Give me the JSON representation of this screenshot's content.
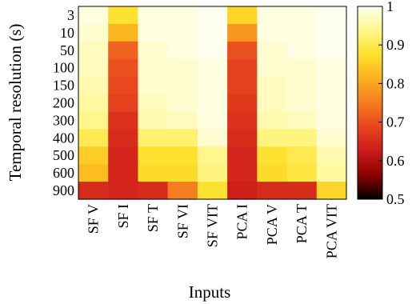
{
  "chart_data": {
    "type": "heatmap",
    "xlabel": "Inputs",
    "ylabel": "Temporal resolution (s)",
    "x_categories": [
      "SF V",
      "SF I",
      "SF T",
      "SF VI",
      "SF VIT",
      "PCA I",
      "PCA V",
      "PCA T",
      "PCA VIT"
    ],
    "y_categories": [
      "3",
      "10",
      "50",
      "100",
      "150",
      "200",
      "300",
      "400",
      "500",
      "600",
      "900"
    ],
    "values": [
      [
        0.99,
        0.88,
        0.99,
        0.99,
        1.0,
        0.86,
        0.99,
        0.99,
        1.0
      ],
      [
        0.98,
        0.82,
        0.99,
        0.99,
        1.0,
        0.78,
        0.99,
        0.99,
        1.0
      ],
      [
        0.97,
        0.72,
        0.98,
        0.99,
        1.0,
        0.7,
        0.98,
        0.99,
        1.0
      ],
      [
        0.97,
        0.7,
        0.98,
        0.98,
        0.99,
        0.68,
        0.98,
        0.98,
        0.99
      ],
      [
        0.96,
        0.69,
        0.98,
        0.98,
        0.99,
        0.68,
        0.97,
        0.98,
        0.99
      ],
      [
        0.95,
        0.68,
        0.97,
        0.98,
        0.99,
        0.67,
        0.97,
        0.98,
        0.99
      ],
      [
        0.94,
        0.66,
        0.96,
        0.97,
        0.99,
        0.66,
        0.96,
        0.97,
        0.99
      ],
      [
        0.9,
        0.65,
        0.92,
        0.92,
        0.98,
        0.65,
        0.93,
        0.93,
        0.98
      ],
      [
        0.85,
        0.64,
        0.88,
        0.88,
        0.94,
        0.64,
        0.88,
        0.9,
        0.96
      ],
      [
        0.83,
        0.64,
        0.87,
        0.87,
        0.93,
        0.64,
        0.87,
        0.89,
        0.95
      ],
      [
        0.65,
        0.64,
        0.65,
        0.75,
        0.88,
        0.63,
        0.65,
        0.65,
        0.86
      ]
    ],
    "colorbar": {
      "min": 0.5,
      "max": 1.0,
      "ticks": [
        1,
        0.9,
        0.8,
        0.7,
        0.6,
        0.5
      ]
    },
    "colormap": [
      "#000000",
      "#8b0000",
      "#cc1a1a",
      "#e8461e",
      "#f57c1f",
      "#fbb020",
      "#fde02a",
      "#fff78a",
      "#fffff0"
    ]
  }
}
